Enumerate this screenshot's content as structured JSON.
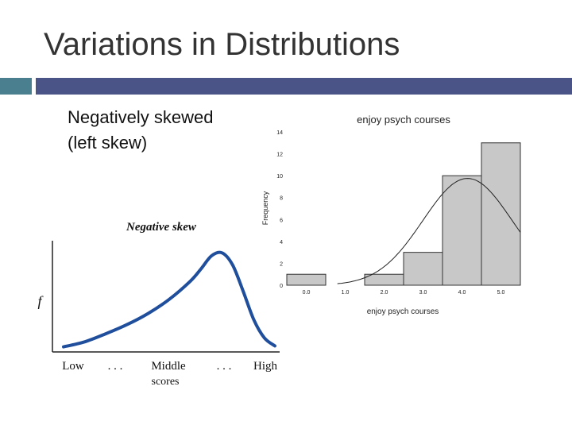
{
  "slide": {
    "title": "Variations in Distributions",
    "bullet_lines": [
      "Negatively skewed",
      "(left skew)"
    ],
    "colors": {
      "accent": "#4a7f8f",
      "title_rule": "#4b5487",
      "curve": "#1f4e9c",
      "bars": "#c8c8c8"
    }
  },
  "chart_data": [
    {
      "type": "line",
      "title": "Negative skew",
      "ylabel": "f",
      "x_labels": [
        "Low",
        ". . .",
        "Middle",
        ". . .",
        "High"
      ],
      "xlabel": "scores",
      "description_shape": "negatively skewed curve",
      "x": [
        0.0,
        0.1,
        0.2,
        0.3,
        0.4,
        0.5,
        0.6,
        0.65,
        0.7,
        0.75,
        0.8,
        0.85,
        0.9,
        0.95,
        1.0
      ],
      "y": [
        0.05,
        0.1,
        0.18,
        0.27,
        0.38,
        0.52,
        0.7,
        0.82,
        0.95,
        0.98,
        0.86,
        0.6,
        0.32,
        0.14,
        0.06
      ],
      "ylim": [
        0,
        1.1
      ]
    },
    {
      "type": "bar",
      "title": "enjoy psych courses",
      "xlabel": "enjoy psych courses",
      "ylabel": "Frequency",
      "bins": [
        {
          "center": 0.0,
          "count": 1
        },
        {
          "center": 2.0,
          "count": 1
        },
        {
          "center": 3.0,
          "count": 3
        },
        {
          "center": 4.0,
          "count": 10
        },
        {
          "center": 5.0,
          "count": 13
        }
      ],
      "x_ticks": [
        "0.0",
        "1.0",
        "2.0",
        "3.0",
        "4.0",
        "5.0"
      ],
      "y_ticks": [
        "0",
        "2",
        "4",
        "6",
        "8",
        "10",
        "12",
        "14"
      ],
      "ylim": [
        0,
        14
      ],
      "xlim": [
        -0.5,
        5.5
      ]
    }
  ]
}
